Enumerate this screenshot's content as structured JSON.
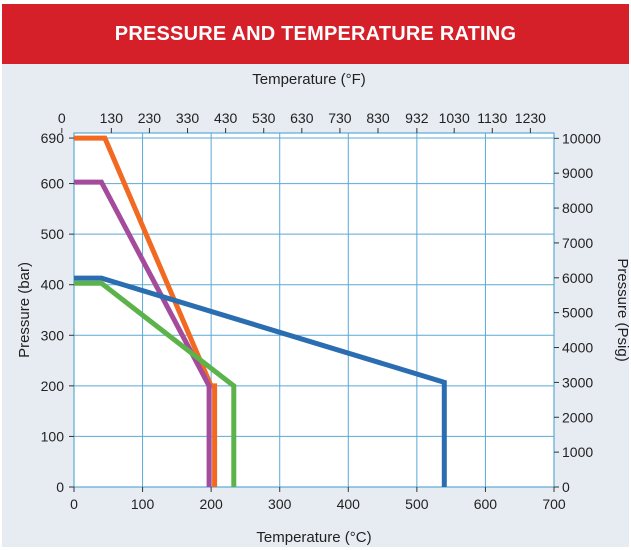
{
  "header": {
    "title": "PRESSURE AND TEMPERATURE RATING"
  },
  "colors": {
    "banner": "#d5202a",
    "background": "#e6ecf2",
    "grid": "#5aa9d6",
    "orange": "#f26a21",
    "purple": "#a54b9b",
    "green": "#5bb34a",
    "blue": "#2a6db0"
  },
  "chart_data": {
    "type": "line",
    "title": "",
    "xlabel": "Temperature (°C)",
    "ylabel": "Pressure (bar)",
    "x2label": "Temperature (°F)",
    "y2label": "Pressure (Psig)",
    "xlim": [
      0,
      700
    ],
    "ylim": [
      0,
      700
    ],
    "grid": true,
    "x_ticks": [
      "0",
      "100",
      "200",
      "300",
      "400",
      "500",
      "600",
      "700"
    ],
    "y_ticks": [
      "0",
      "100",
      "200",
      "300",
      "400",
      "500",
      "600",
      "690"
    ],
    "x2_ticks": [
      "0",
      "130",
      "230",
      "330",
      "430",
      "530",
      "630",
      "730",
      "830",
      "932",
      "1030",
      "1130",
      "1230"
    ],
    "y2_ticks": [
      "0",
      "1000",
      "2000",
      "3000",
      "4000",
      "5000",
      "6000",
      "7000",
      "8000",
      "9000",
      "10000"
    ],
    "series": [
      {
        "color": "#f26a21",
        "points": [
          [
            0,
            690
          ],
          [
            45,
            690
          ],
          [
            200,
            200
          ],
          [
            205,
            200
          ],
          [
            205,
            0
          ]
        ]
      },
      {
        "color": "#a54b9b",
        "points": [
          [
            0,
            603
          ],
          [
            40,
            603
          ],
          [
            197,
            200
          ],
          [
            197,
            0
          ]
        ]
      },
      {
        "color": "#5bb34a",
        "points": [
          [
            0,
            403
          ],
          [
            40,
            403
          ],
          [
            233,
            200
          ],
          [
            233,
            0
          ]
        ]
      },
      {
        "color": "#2a6db0",
        "points": [
          [
            0,
            413
          ],
          [
            40,
            413
          ],
          [
            540,
            207
          ],
          [
            540,
            0
          ]
        ]
      }
    ]
  }
}
